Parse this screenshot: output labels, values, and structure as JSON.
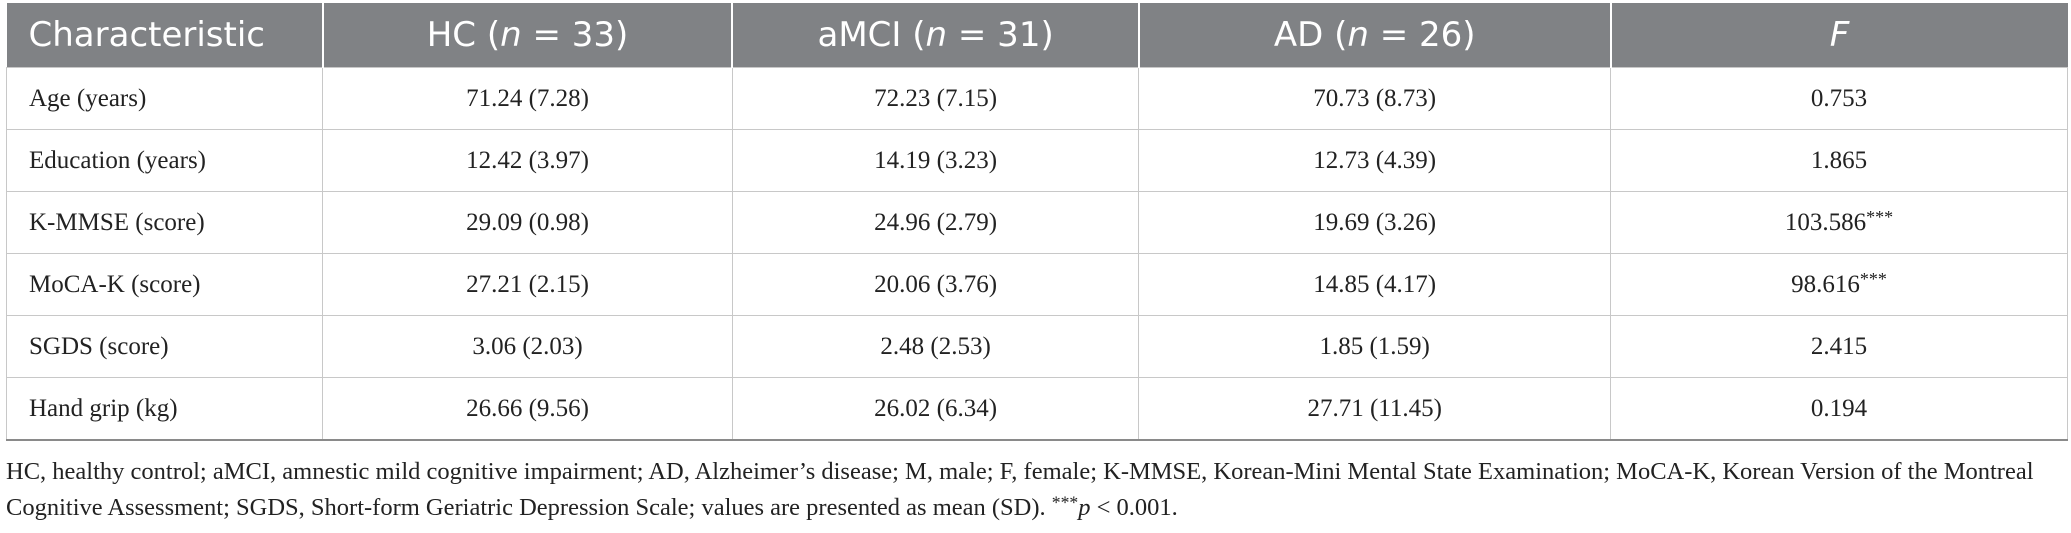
{
  "table": {
    "headers": [
      {
        "main": "Characteristic",
        "italic": "",
        "suffix": ""
      },
      {
        "main": "HC (",
        "italic": "n",
        "suffix": " = 33)"
      },
      {
        "main": "aMCI (",
        "italic": "n",
        "suffix": " = 31)"
      },
      {
        "main": "AD (",
        "italic": "n",
        "suffix": " = 26)"
      },
      {
        "main": "",
        "italic": "F",
        "suffix": ""
      }
    ],
    "rows": [
      {
        "label": "Age (years)",
        "hc": "71.24 (7.28)",
        "amci": "72.23 (7.15)",
        "ad": "70.73 (8.73)",
        "f": "0.753",
        "sig": ""
      },
      {
        "label": "Education (years)",
        "hc": "12.42 (3.97)",
        "amci": "14.19 (3.23)",
        "ad": "12.73 (4.39)",
        "f": "1.865",
        "sig": ""
      },
      {
        "label": "K-MMSE (score)",
        "hc": "29.09 (0.98)",
        "amci": "24.96 (2.79)",
        "ad": "19.69 (3.26)",
        "f": "103.586",
        "sig": "***"
      },
      {
        "label": "MoCA-K (score)",
        "hc": "27.21 (2.15)",
        "amci": "20.06 (3.76)",
        "ad": "14.85 (4.17)",
        "f": "98.616",
        "sig": "***"
      },
      {
        "label": "SGDS (score)",
        "hc": "3.06 (2.03)",
        "amci": "2.48 (2.53)",
        "ad": "1.85 (1.59)",
        "f": "2.415",
        "sig": ""
      },
      {
        "label": "Hand grip (kg)",
        "hc": "26.66 (9.56)",
        "amci": "26.02 (6.34)",
        "ad": "27.71 (11.45)",
        "f": "0.194",
        "sig": ""
      }
    ]
  },
  "footnote": {
    "text": "HC, healthy control; aMCI, amnestic mild cognitive impairment; AD, Alzheimer’s disease; M, male; F, female; K-MMSE, Korean-Mini Mental State Examination; MoCA-K, Korean Version of the Montreal Cognitive Assessment; SGDS, Short-form Geriatric Depression Scale; values are presented as mean (SD). ",
    "sig_marker": "***",
    "p_symbol": "p",
    "p_text": " < 0.001."
  }
}
